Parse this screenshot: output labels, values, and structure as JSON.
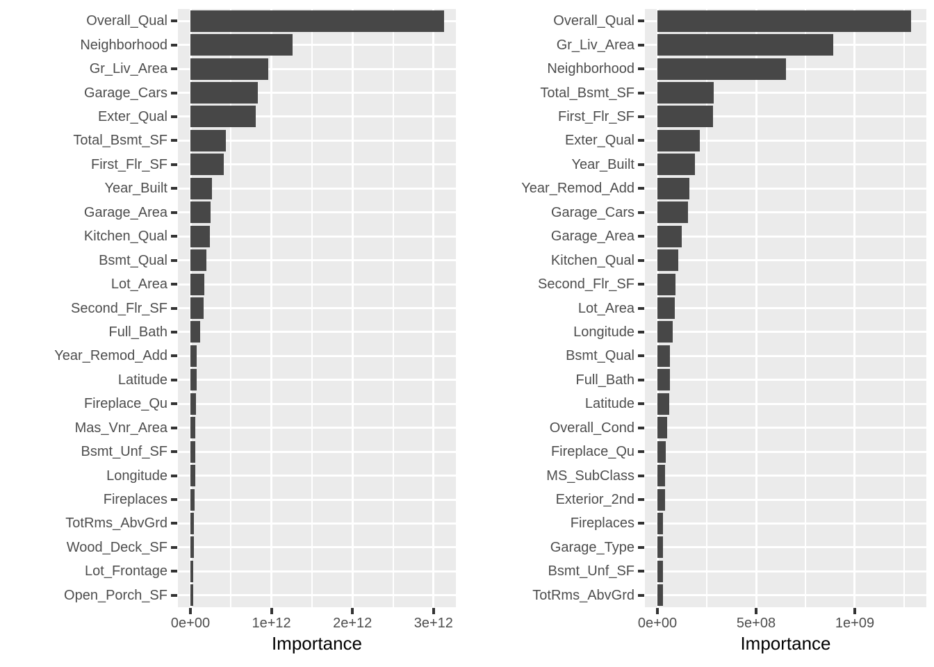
{
  "figure": {
    "background": "#ffffff",
    "style": {
      "bar_fill": "#474747",
      "panel_background": "#ebebeb",
      "grid_color": "#ffffff",
      "axis_text_color": "#4d4d4d",
      "axis_title_color": "#000000",
      "tick_mark_color": "#333333"
    }
  },
  "chart_data": [
    {
      "type": "bar",
      "orientation": "horizontal",
      "title": "",
      "xlabel": "Importance",
      "ylabel": "",
      "legend": "none",
      "grid": true,
      "categories": [
        "Overall_Qual",
        "Neighborhood",
        "Gr_Liv_Area",
        "Garage_Cars",
        "Exter_Qual",
        "Total_Bsmt_SF",
        "First_Flr_SF",
        "Year_Built",
        "Garage_Area",
        "Kitchen_Qual",
        "Bsmt_Qual",
        "Lot_Area",
        "Second_Flr_SF",
        "Full_Bath",
        "Year_Remod_Add",
        "Latitude",
        "Fireplace_Qu",
        "Mas_Vnr_Area",
        "Bsmt_Unf_SF",
        "Longitude",
        "Fireplaces",
        "TotRms_AbvGrd",
        "Wood_Deck_SF",
        "Lot_Frontage",
        "Open_Porch_SF"
      ],
      "values": [
        3130000000000.0,
        1260000000000.0,
        960000000000.0,
        830000000000.0,
        805000000000.0,
        440000000000.0,
        410000000000.0,
        266000000000.0,
        246000000000.0,
        238000000000.0,
        197000000000.0,
        172000000000.0,
        163000000000.0,
        120000000000.0,
        80000000000.0,
        76000000000.0,
        66000000000.0,
        63000000000.0,
        60000000000.0,
        58000000000.0,
        50000000000.0,
        44000000000.0,
        40000000000.0,
        37000000000.0,
        35000000000.0
      ],
      "xlim": [
        -154400000000.0,
        3276000000000.0
      ],
      "x_major_ticks": [
        0,
        1000000000000.0,
        2000000000000.0,
        3000000000000.0
      ],
      "x_tick_labels": [
        "0e+00",
        "1e+12",
        "2e+12",
        "3e+12"
      ],
      "x_minor_ticks": [
        500000000000.0,
        1500000000000.0,
        2500000000000.0
      ]
    },
    {
      "type": "bar",
      "orientation": "horizontal",
      "title": "",
      "xlabel": "Importance",
      "ylabel": "",
      "legend": "none",
      "grid": true,
      "categories": [
        "Overall_Qual",
        "Gr_Liv_Area",
        "Neighborhood",
        "Total_Bsmt_SF",
        "First_Flr_SF",
        "Exter_Qual",
        "Year_Built",
        "Year_Remod_Add",
        "Garage_Cars",
        "Garage_Area",
        "Kitchen_Qual",
        "Second_Flr_SF",
        "Lot_Area",
        "Longitude",
        "Bsmt_Qual",
        "Full_Bath",
        "Latitude",
        "Overall_Cond",
        "Fireplace_Qu",
        "MS_SubClass",
        "Exterior_2nd",
        "Fireplaces",
        "Garage_Type",
        "Bsmt_Unf_SF",
        "TotRms_AbvGrd"
      ],
      "values": [
        1285000000.0,
        890000000.0,
        650000000.0,
        286000000.0,
        282000000.0,
        215000000.0,
        190000000.0,
        161000000.0,
        155000000.0,
        123000000.0,
        106000000.0,
        90000000.0,
        89000000.0,
        76000000.0,
        64000000.0,
        63000000.0,
        59000000.0,
        49000000.0,
        41000000.0,
        38000000.0,
        37000000.0,
        29000000.0,
        28500000.0,
        28000000.0,
        27500000.0
      ],
      "xlim": [
        -63400000.0,
        1362700000.0
      ],
      "x_major_ticks": [
        0,
        500000000.0,
        1000000000.0
      ],
      "x_tick_labels": [
        "0e+00",
        "5e+08",
        "1e+09"
      ],
      "x_minor_ticks": [
        250000000.0,
        750000000.0,
        1250000000.0
      ]
    }
  ]
}
